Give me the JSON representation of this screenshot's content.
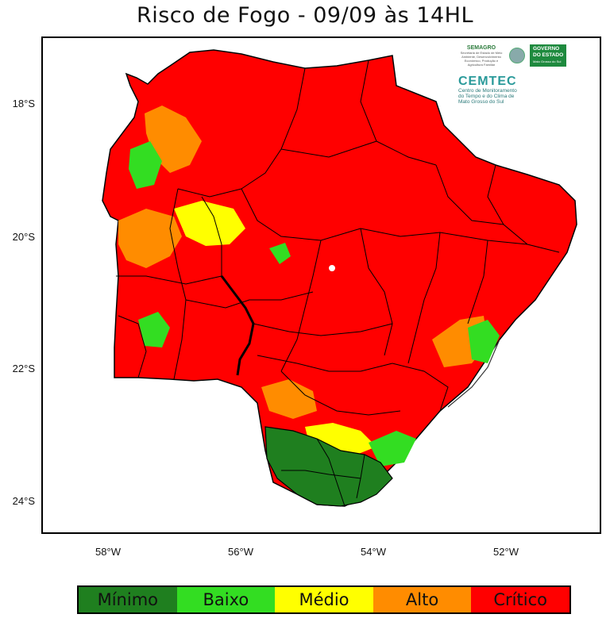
{
  "title": "Risco de Fogo - 09/09 às 14HL",
  "axes": {
    "y_ticks": [
      {
        "label": "18°S"
      },
      {
        "label": "20°S"
      },
      {
        "label": "22°S"
      },
      {
        "label": "24°S"
      }
    ],
    "x_ticks": [
      {
        "label": "58°W"
      },
      {
        "label": "56°W"
      },
      {
        "label": "54°W"
      },
      {
        "label": "52°W"
      }
    ]
  },
  "legend": {
    "items": [
      {
        "label": "Mínimo",
        "color": "#1f7f1f"
      },
      {
        "label": "Baixo",
        "color": "#33dd22"
      },
      {
        "label": "Médio",
        "color": "#ffff00"
      },
      {
        "label": "Alto",
        "color": "#ff8c00"
      },
      {
        "label": "Crítico",
        "color": "#ff0000"
      }
    ]
  },
  "logos": {
    "semagro": "SEMAGRO",
    "semagro_sub": "Secretaria de Estado de Meio Ambiente, Desenvolvimento Econômico, Produção e Agricultura Familiar",
    "governo_line1": "GOVERNO",
    "governo_line2": "DO ESTADO",
    "governo_line3": "Mato Grosso do Sul",
    "cemtec": "CEMTEC",
    "cemtec_sub1": "Centro de Monitoramento",
    "cemtec_sub2": "do Tempo e do Clima de",
    "cemtec_sub3": "Mato Grosso do Sul"
  },
  "colors": {
    "critico": "#ff0000",
    "alto": "#ff8c00",
    "medio": "#ffff00",
    "baixo": "#33dd22",
    "minimo": "#1f7f1f"
  }
}
